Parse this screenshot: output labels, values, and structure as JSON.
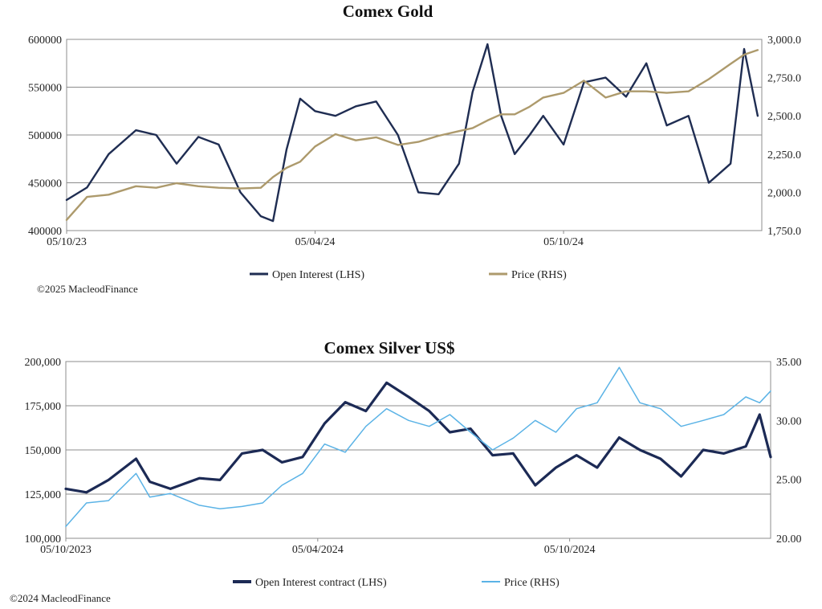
{
  "colors": {
    "gold_oi": "#1f2d52",
    "gold_price": "#ad9a6c",
    "silver_oi": "#1c2a55",
    "silver_price": "#5bb3e6",
    "grid": "#8c8c8c"
  },
  "chart_data": [
    {
      "type": "line",
      "title": "Comex Gold",
      "copyright": "©2025 MacleodFinance",
      "x_range": [
        "2023-10-05",
        "2025-02-28"
      ],
      "x_ticks": [
        "05/10/23",
        "05/04/24",
        "05/10/24"
      ],
      "y_left": {
        "ylim": [
          400000,
          600000
        ],
        "ticks": [
          "400000",
          "450000",
          "500000",
          "550000",
          "600000"
        ]
      },
      "y_right": {
        "ylim": [
          1750,
          3000
        ],
        "ticks": [
          "1,750.0",
          "2,000.0",
          "2,250.0",
          "2,500.0",
          "2,750.0",
          "3,000.0"
        ]
      },
      "grid": true,
      "legend_position": "bottom",
      "series": [
        {
          "name": "Open Interest (LHS)",
          "axis": "left",
          "color_key": "gold_oi",
          "x": [
            "2023-10-05",
            "2023-10-20",
            "2023-11-05",
            "2023-11-25",
            "2023-12-10",
            "2023-12-25",
            "2024-01-10",
            "2024-01-25",
            "2024-02-10",
            "2024-02-25",
            "2024-03-05",
            "2024-03-15",
            "2024-03-25",
            "2024-04-05",
            "2024-04-20",
            "2024-05-05",
            "2024-05-20",
            "2024-06-05",
            "2024-06-20",
            "2024-07-05",
            "2024-07-20",
            "2024-07-30",
            "2024-08-10",
            "2024-08-20",
            "2024-08-30",
            "2024-09-10",
            "2024-09-20",
            "2024-10-05",
            "2024-10-20",
            "2024-11-05",
            "2024-11-20",
            "2024-12-05",
            "2024-12-20",
            "2025-01-05",
            "2025-01-20",
            "2025-02-05",
            "2025-02-15",
            "2025-02-25"
          ],
          "values": [
            432000,
            445000,
            480000,
            505000,
            500000,
            470000,
            498000,
            490000,
            440000,
            415000,
            410000,
            485000,
            538000,
            525000,
            520000,
            530000,
            535000,
            500000,
            440000,
            438000,
            470000,
            545000,
            595000,
            520000,
            480000,
            500000,
            520000,
            490000,
            555000,
            560000,
            540000,
            575000,
            510000,
            520000,
            450000,
            470000,
            590000,
            520000
          ]
        },
        {
          "name": "Price (RHS)",
          "axis": "right",
          "color_key": "gold_price",
          "x": [
            "2023-10-05",
            "2023-10-20",
            "2023-11-05",
            "2023-11-25",
            "2023-12-10",
            "2023-12-25",
            "2024-01-10",
            "2024-01-25",
            "2024-02-10",
            "2024-02-25",
            "2024-03-05",
            "2024-03-15",
            "2024-03-25",
            "2024-04-05",
            "2024-04-20",
            "2024-05-05",
            "2024-05-20",
            "2024-06-05",
            "2024-06-20",
            "2024-07-05",
            "2024-07-20",
            "2024-07-30",
            "2024-08-10",
            "2024-08-20",
            "2024-08-30",
            "2024-09-10",
            "2024-09-20",
            "2024-10-05",
            "2024-10-20",
            "2024-11-05",
            "2024-11-20",
            "2024-12-05",
            "2024-12-20",
            "2025-01-05",
            "2025-01-20",
            "2025-02-05",
            "2025-02-15",
            "2025-02-25"
          ],
          "values": [
            1820,
            1970,
            1985,
            2040,
            2030,
            2060,
            2040,
            2030,
            2025,
            2030,
            2100,
            2160,
            2200,
            2300,
            2380,
            2340,
            2360,
            2310,
            2330,
            2370,
            2400,
            2420,
            2470,
            2510,
            2510,
            2560,
            2620,
            2650,
            2730,
            2620,
            2660,
            2660,
            2650,
            2660,
            2740,
            2840,
            2900,
            2930
          ]
        }
      ]
    },
    {
      "type": "line",
      "title": "Comex Silver US$",
      "copyright": "©2024 MacleodFinance",
      "x_range": [
        "2023-10-05",
        "2025-02-28"
      ],
      "x_ticks": [
        "05/10/2023",
        "05/04/2024",
        "05/10/2024"
      ],
      "y_left": {
        "ylim": [
          100000,
          200000
        ],
        "ticks": [
          "100,000",
          "125,000",
          "150,000",
          "175,000",
          "200,000"
        ]
      },
      "y_right": {
        "ylim": [
          20,
          35
        ],
        "ticks": [
          "20.00",
          "25.00",
          "30.00",
          "35.00"
        ]
      },
      "grid": true,
      "legend_position": "bottom",
      "series": [
        {
          "name": "Open Interest contract (LHS)",
          "axis": "left",
          "color_key": "silver_oi",
          "x": [
            "2023-10-05",
            "2023-10-20",
            "2023-11-05",
            "2023-11-25",
            "2023-12-05",
            "2023-12-20",
            "2024-01-10",
            "2024-01-25",
            "2024-02-10",
            "2024-02-25",
            "2024-03-10",
            "2024-03-25",
            "2024-04-10",
            "2024-04-25",
            "2024-05-10",
            "2024-05-25",
            "2024-06-10",
            "2024-06-25",
            "2024-07-10",
            "2024-07-25",
            "2024-08-10",
            "2024-08-25",
            "2024-09-10",
            "2024-09-25",
            "2024-10-10",
            "2024-10-25",
            "2024-11-10",
            "2024-11-25",
            "2024-12-10",
            "2024-12-25",
            "2025-01-10",
            "2025-01-25",
            "2025-02-10",
            "2025-02-20",
            "2025-02-28"
          ],
          "values": [
            128000,
            126000,
            133000,
            145000,
            132000,
            128000,
            134000,
            133000,
            148000,
            150000,
            143000,
            146000,
            165000,
            177000,
            172000,
            188000,
            180000,
            172000,
            160000,
            162000,
            147000,
            148000,
            130000,
            140000,
            147000,
            140000,
            157000,
            150000,
            145000,
            135000,
            150000,
            148000,
            152000,
            170000,
            146000
          ]
        },
        {
          "name": "Price (RHS)",
          "axis": "right",
          "color_key": "silver_price",
          "x": [
            "2023-10-05",
            "2023-10-20",
            "2023-11-05",
            "2023-11-25",
            "2023-12-05",
            "2023-12-20",
            "2024-01-10",
            "2024-01-25",
            "2024-02-10",
            "2024-02-25",
            "2024-03-10",
            "2024-03-25",
            "2024-04-10",
            "2024-04-25",
            "2024-05-10",
            "2024-05-25",
            "2024-06-10",
            "2024-06-25",
            "2024-07-10",
            "2024-07-25",
            "2024-08-10",
            "2024-08-25",
            "2024-09-10",
            "2024-09-25",
            "2024-10-10",
            "2024-10-25",
            "2024-11-10",
            "2024-11-25",
            "2024-12-10",
            "2024-12-25",
            "2025-01-10",
            "2025-01-25",
            "2025-02-10",
            "2025-02-20",
            "2025-02-28"
          ],
          "values": [
            21.0,
            23.0,
            23.2,
            25.5,
            23.5,
            23.8,
            22.8,
            22.5,
            22.7,
            23.0,
            24.5,
            25.5,
            28.0,
            27.3,
            29.5,
            31.0,
            30.0,
            29.5,
            30.5,
            29.0,
            27.5,
            28.5,
            30.0,
            29.0,
            31.0,
            31.5,
            34.5,
            31.5,
            31.0,
            29.5,
            30.0,
            30.5,
            32.0,
            31.5,
            32.5
          ]
        }
      ]
    }
  ]
}
